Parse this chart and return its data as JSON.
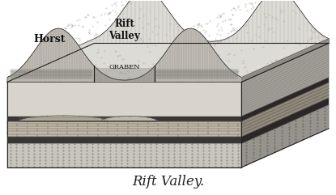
{
  "title": "Rift Valley.",
  "title_fontsize": 12,
  "title_color": "#222222",
  "bg_color": "#ffffff",
  "label_horst": "Horst",
  "label_rift_valley": "Rift\nValley",
  "label_graben": "GRABEN",
  "fig_width": 4.15,
  "fig_height": 2.41,
  "dpi": 100,
  "colors": {
    "light_surface": "#dddbd5",
    "dotted_layer": "#c8c5bc",
    "dark_band": "#3a3535",
    "brick_layer": "#c0b8a8",
    "mid_band": "#888078",
    "top_layer": "#d8d4cc",
    "fault_scarp": "#c0bcb4",
    "right_side": "#b0aca4",
    "bottom_side": "#a8a49c",
    "hatch_lines": "#888480",
    "outline": "#222222"
  }
}
